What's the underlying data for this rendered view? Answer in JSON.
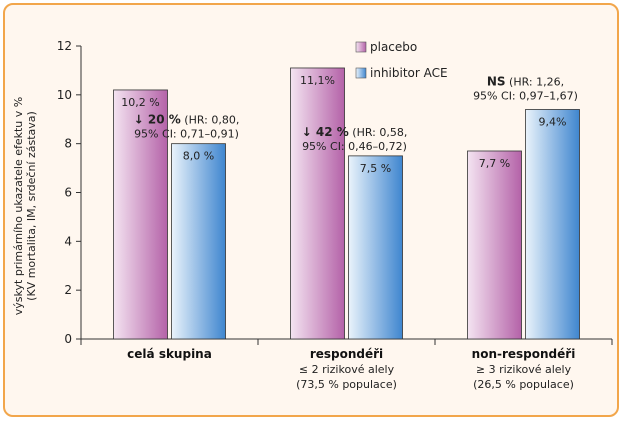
{
  "chart_data": {
    "type": "bar",
    "ylabel_line1": "výskyt primárního ukazatele efektu v %",
    "ylabel_line2": "(KV mortalita, IM, srdeční zástava)",
    "ylim": [
      0,
      12
    ],
    "yticks": [
      "0",
      "2",
      "4",
      "6",
      "8",
      "10",
      "12"
    ],
    "grid": false,
    "legend_position": "top-right",
    "categories": [
      {
        "label": "celá skupina",
        "sub1": "",
        "sub2": ""
      },
      {
        "label": "respondéři",
        "sub1": "≤ 2 rizikové alely",
        "sub2": "(73,5 % populace)"
      },
      {
        "label": "non-respondéři",
        "sub1": "≥ 3 rizikové alely",
        "sub2": "(26,5 % populace)"
      }
    ],
    "series": [
      {
        "name": "placebo",
        "values": [
          10.2,
          11.1,
          7.7
        ],
        "labels": [
          "10,2 %",
          "11,1%",
          "7,7 %"
        ],
        "color_light": "#f4e4f1",
        "color_dark": "#b462a8"
      },
      {
        "name": "inhibitor ACE",
        "values": [
          8.0,
          7.5,
          9.4
        ],
        "labels": [
          "8,0 %",
          "7,5 %",
          "9,4%"
        ],
        "color_light": "#eaf3fb",
        "color_dark": "#3f86cf"
      }
    ],
    "annotations": [
      {
        "bold": "↓ 20 %",
        "rest": " (HR: 0,80,",
        "line2": "95% CI: 0,71–0,91)"
      },
      {
        "bold": "↓ 42 %",
        "rest": " (HR: 0,58,",
        "line2": "95% CI: 0,46–0,72)"
      },
      {
        "bold": "NS",
        "rest": " (HR: 1,26,",
        "line2": "95% CI: 0,97–1,67)"
      }
    ]
  }
}
